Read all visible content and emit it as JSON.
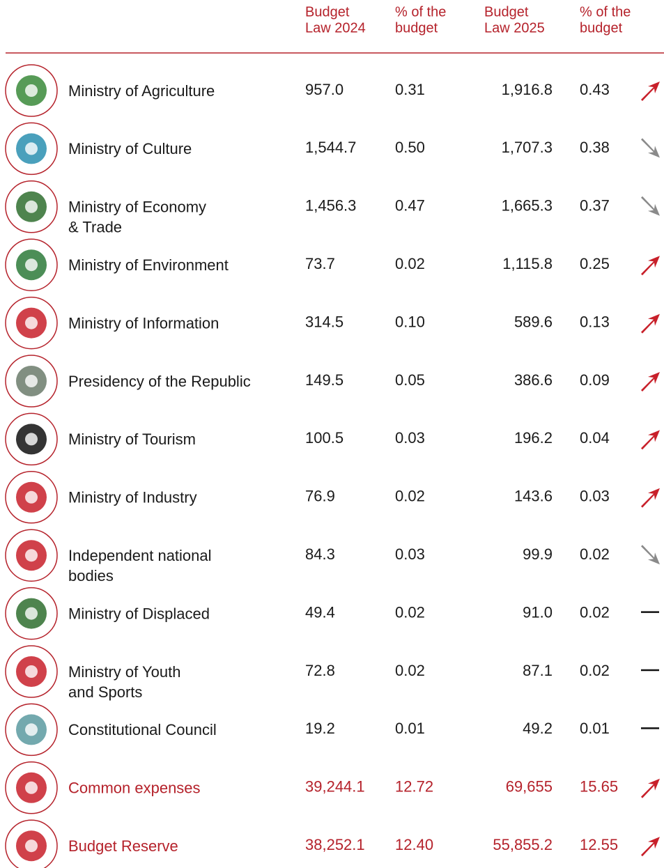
{
  "header": {
    "columns": [
      [
        "Budget",
        "Law 2024"
      ],
      [
        "% of the",
        "budget"
      ],
      [
        "Budget",
        "Law 2025"
      ],
      [
        "% of the",
        "budget"
      ]
    ]
  },
  "table": {
    "rows": [
      {
        "name": [
          "Ministry of Agriculture"
        ],
        "budget_2024": "957.0",
        "share_2024": "0.31",
        "budget_2025": "1,916.8",
        "share_2025": "0.43"
      },
      {
        "name": [
          "Ministry of Culture"
        ],
        "budget_2024": "1,544.7",
        "share_2024": "0.50",
        "budget_2025": "1,707.3",
        "share_2025": "0.38"
      },
      {
        "name": [
          "Ministry of Economy",
          "& Trade"
        ],
        "budget_2024": "1,456.3",
        "share_2024": "0.47",
        "budget_2025": "1,665.3",
        "share_2025": "0.37"
      },
      {
        "name": [
          "Ministry of Environment"
        ],
        "budget_2024": "73.7",
        "share_2024": "0.02",
        "budget_2025": "1,115.8",
        "share_2025": "0.25"
      },
      {
        "name": [
          "Ministry of Information"
        ],
        "budget_2024": "314.5",
        "share_2024": "0.10",
        "budget_2025": "589.6",
        "share_2025": "0.13"
      },
      {
        "name": [
          "Presidency of the Republic"
        ],
        "budget_2024": "149.5",
        "share_2024": "0.05",
        "budget_2025": "386.6",
        "share_2025": "0.09"
      },
      {
        "name": [
          "Ministry of Tourism"
        ],
        "budget_2024": "100.5",
        "share_2024": "0.03",
        "budget_2025": "196.2",
        "share_2025": "0.04"
      },
      {
        "name": [
          "Ministry of Industry"
        ],
        "budget_2024": "76.9",
        "share_2024": "0.02",
        "budget_2025": "143.6",
        "share_2025": "0.03"
      },
      {
        "name": [
          "Independent national",
          "bodies"
        ],
        "budget_2024": "84.3",
        "share_2024": "0.03",
        "budget_2025": "99.9",
        "share_2025": "0.02"
      },
      {
        "name": [
          "Ministry of Displaced"
        ],
        "budget_2024": "49.4",
        "share_2024": "0.02",
        "budget_2025": "91.0",
        "share_2025": "0.02"
      },
      {
        "name": [
          "Ministry of Youth",
          "and Sports"
        ],
        "budget_2024": "72.8",
        "share_2024": "0.02",
        "budget_2025": "87.1",
        "share_2025": "0.02"
      },
      {
        "name": [
          "Constitutional Council"
        ],
        "budget_2024": "19.2",
        "share_2024": "0.01",
        "budget_2025": "49.2",
        "share_2025": "0.01"
      },
      {
        "name": [
          "Common expenses"
        ],
        "budget_2024": "39,244.1",
        "share_2024": "12.72",
        "budget_2025": "69,655",
        "share_2025": "15.65"
      },
      {
        "name": [
          "Budget Reserve"
        ],
        "budget_2024": "38,252.1",
        "share_2024": "12.40",
        "budget_2025": "55,855.2",
        "share_2025": "12.55"
      }
    ]
  }
}
